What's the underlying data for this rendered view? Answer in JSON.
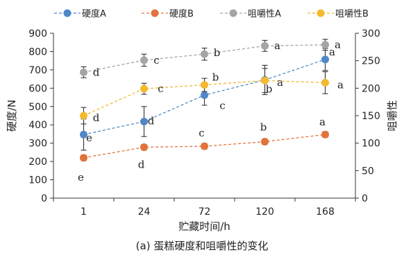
{
  "chart_data": {
    "type": "line",
    "caption": "(a) 蛋糕硬度和咀嚼性的变化",
    "xlabel": "贮藏时间/h",
    "ylabel_left": "硬度/N",
    "ylabel_right": "咀嚼性",
    "categories": [
      "1",
      "24",
      "72",
      "120",
      "168"
    ],
    "ylim_left": [
      0,
      900
    ],
    "yticks_left": [
      "0",
      "100",
      "200",
      "300",
      "400",
      "500",
      "600",
      "700",
      "800",
      "900"
    ],
    "ylim_right": [
      0,
      300
    ],
    "yticks_right": [
      "0",
      "50",
      "100",
      "150",
      "200",
      "250",
      "300"
    ],
    "grid": false,
    "legend_position": "top",
    "series": [
      {
        "name": "硬度A",
        "axis": "left",
        "color": "#4f88c6",
        "values": [
          347,
          418,
          562,
          645,
          757
        ],
        "errors": [
          85,
          82,
          55,
          80,
          60
        ],
        "labels": [
          "e",
          "d",
          "c",
          "b",
          "a"
        ]
      },
      {
        "name": "硬度B",
        "axis": "left",
        "color": "#e2733a",
        "values": [
          220,
          278,
          283,
          308,
          347
        ],
        "errors": [
          15,
          15,
          15,
          15,
          15
        ],
        "labels": [
          "e",
          "d",
          "c",
          "b",
          "a"
        ]
      },
      {
        "name": "咀嚼性A",
        "axis": "right",
        "color": "#a5a5a5",
        "values": [
          229,
          251,
          262,
          277,
          279
        ],
        "errors": [
          10,
          11,
          11,
          10,
          10
        ],
        "labels": [
          "d",
          "c",
          "b",
          "a",
          "a"
        ]
      },
      {
        "name": "咀嚼性B",
        "axis": "right",
        "color": "#f5b82e",
        "values": [
          150,
          199,
          206,
          214,
          210
        ],
        "errors": [
          15,
          10,
          12,
          22,
          20
        ],
        "labels": [
          "d",
          "c",
          "b",
          "a",
          "a"
        ]
      }
    ]
  }
}
